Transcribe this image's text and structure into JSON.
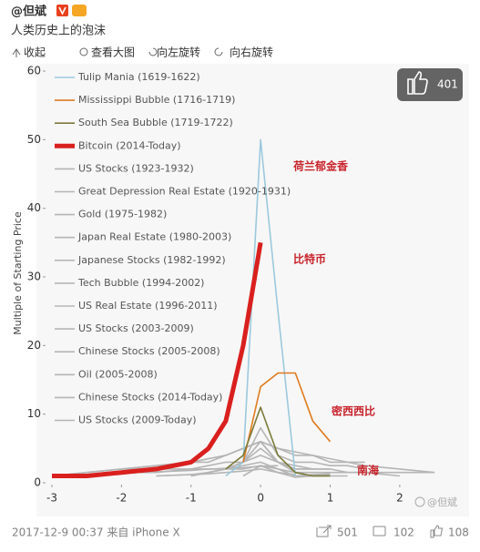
{
  "header": {
    "user": "@但斌",
    "text": "人类历史上的泡沫"
  },
  "toolbar": [
    "收起",
    "查看大图",
    "向左旋转",
    "向右旋转"
  ],
  "chart_data": {
    "type": "line",
    "ylabel": "Multiple of Starting Price",
    "x": [
      -3,
      -2.5,
      -2,
      -1.5,
      -1,
      -0.75,
      -0.5,
      -0.25,
      0,
      0.25,
      0.5,
      0.75,
      1,
      1.25,
      1.5,
      2,
      2.5
    ],
    "xlim": [
      -3,
      2.8
    ],
    "ylim": [
      0,
      60
    ],
    "xticks": [
      -3,
      -2,
      -1,
      0,
      1,
      2
    ],
    "yticks": [
      0,
      10,
      20,
      30,
      40,
      50,
      60
    ],
    "series": [
      {
        "name": "Tulip Mania (1619-1622)",
        "color": "#9cc9dd",
        "values": [
          null,
          null,
          null,
          null,
          null,
          null,
          1,
          3,
          50,
          25,
          1,
          null,
          null,
          null,
          null,
          null,
          null
        ]
      },
      {
        "name": "Mississippi Bubble (1716-1719)",
        "color": "#e07b20",
        "values": [
          null,
          null,
          null,
          null,
          null,
          null,
          null,
          3,
          14,
          16,
          16,
          9,
          6,
          null,
          null,
          null,
          null
        ]
      },
      {
        "name": "South Sea Bubble (1719-1722)",
        "color": "#7b7a3a",
        "values": [
          null,
          null,
          null,
          null,
          null,
          null,
          2,
          4,
          11,
          4,
          1.5,
          1,
          1,
          null,
          null,
          null,
          null
        ]
      },
      {
        "name": "Bitcoin (2014-Today)",
        "color": "#d9201e",
        "values": [
          1,
          1,
          1.5,
          2,
          3,
          5,
          9,
          20,
          35,
          null,
          null,
          null,
          null,
          null,
          null,
          null,
          null
        ]
      },
      {
        "name": "US Stocks (1923-1932)",
        "color": "#b5b5b5",
        "values": [
          null,
          null,
          null,
          null,
          1,
          1.5,
          2,
          3,
          5,
          3,
          1.5,
          1,
          1,
          1,
          null,
          null,
          null
        ]
      },
      {
        "name": "Great Depression Real Estate (1920-1931)",
        "color": "#b5b5b5",
        "values": [
          1,
          1,
          1.5,
          2,
          2,
          2.5,
          3,
          3,
          4,
          3,
          2.5,
          2,
          2,
          1.5,
          1.5,
          1,
          null
        ]
      },
      {
        "name": "Gold (1975-1982)",
        "color": "#b5b5b5",
        "values": [
          null,
          null,
          null,
          null,
          1,
          1.5,
          2,
          3,
          8,
          4,
          3,
          3,
          2.5,
          2.5,
          2,
          null,
          null
        ]
      },
      {
        "name": "Japan Real Estate (1980-2003)",
        "color": "#b5b5b5",
        "values": [
          1,
          1.5,
          2,
          2.5,
          3,
          3.5,
          4,
          5,
          6,
          5,
          4.5,
          4,
          3.5,
          3,
          2.5,
          2,
          1.5
        ]
      },
      {
        "name": "Japanese Stocks (1982-1992)",
        "color": "#b5b5b5",
        "values": [
          1,
          1.5,
          2,
          2.5,
          3,
          3.5,
          4,
          5,
          6,
          5,
          4,
          4,
          3,
          3,
          3,
          null,
          null
        ]
      },
      {
        "name": "Tech Bubble (1994-2002)",
        "color": "#b5b5b5",
        "values": [
          null,
          null,
          2,
          2,
          3,
          3,
          4,
          5,
          6,
          3,
          2,
          2,
          2,
          null,
          null,
          null,
          null
        ]
      },
      {
        "name": "US Real Estate (1996-2011)",
        "color": "#b5b5b5",
        "values": [
          1,
          1,
          1.5,
          1.5,
          2,
          2,
          2,
          2,
          2.5,
          2,
          1.5,
          1.5,
          1.5,
          1.5,
          1.5,
          1.5,
          1.5
        ]
      },
      {
        "name": "US Stocks (2003-2009)",
        "color": "#b5b5b5",
        "values": [
          null,
          null,
          null,
          1,
          1.2,
          1.3,
          1.5,
          1.7,
          2,
          1.5,
          0.8,
          1,
          1.2,
          null,
          null,
          null,
          null
        ]
      },
      {
        "name": "Chinese Stocks (2005-2008)",
        "color": "#b5b5b5",
        "values": [
          null,
          null,
          null,
          null,
          1,
          1.5,
          2,
          3,
          6,
          3,
          2,
          2,
          null,
          null,
          null,
          null,
          null
        ]
      },
      {
        "name": "Oil (2005-2008)",
        "color": "#b5b5b5",
        "values": [
          null,
          null,
          null,
          1,
          1.2,
          1.5,
          2,
          2.5,
          3,
          2,
          1,
          1.2,
          1.3,
          null,
          null,
          null,
          null
        ]
      },
      {
        "name": "Chinese Stocks (2014-Today)",
        "color": "#b5b5b5",
        "values": [
          null,
          null,
          null,
          null,
          null,
          null,
          null,
          1,
          2.5,
          1.5,
          1.2,
          null,
          null,
          null,
          null,
          null,
          null
        ]
      },
      {
        "name": "US Stocks (2009-Today)",
        "color": "#b5b5b5",
        "values": [
          1,
          1.2,
          1.4,
          1.6,
          1.8,
          2,
          2.1,
          2.2,
          2.4,
          2.5,
          null,
          null,
          null,
          null,
          null,
          null,
          null
        ]
      }
    ],
    "annotations": [
      "荷兰郁金香",
      "比特币",
      "密西西比",
      "南海"
    ]
  },
  "image_badge": {
    "likes": 401,
    "watermark": "@但斌"
  },
  "footer": {
    "time": "2017-12-9 00:37 来自 iPhone X",
    "reposts": 501,
    "comments": 102,
    "likes": 108
  }
}
